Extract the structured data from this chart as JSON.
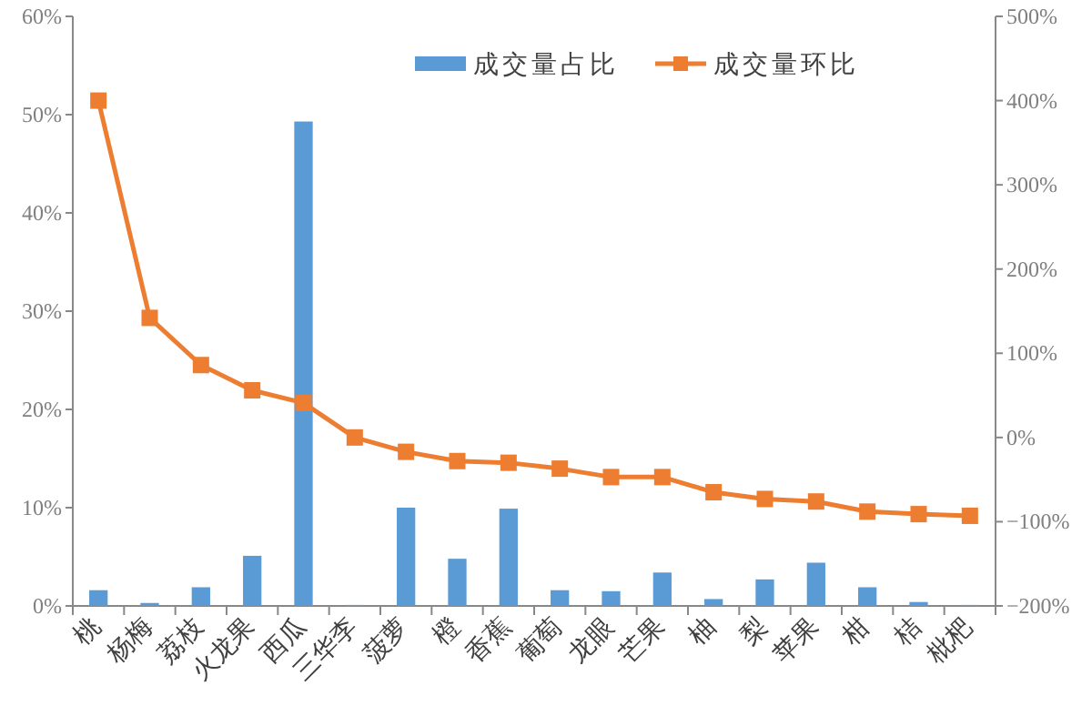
{
  "chart_data": {
    "type": "bar",
    "categories": [
      "桃",
      "杨梅",
      "荔枝",
      "火龙果",
      "西瓜",
      "三华李",
      "菠萝",
      "橙",
      "香蕉",
      "葡萄",
      "龙眼",
      "芒果",
      "柚",
      "梨",
      "苹果",
      "柑",
      "桔",
      "枇杷"
    ],
    "series": [
      {
        "name": "成交量占比",
        "color": "#5b9bd5",
        "values": [
          1.6,
          0.3,
          1.9,
          5.1,
          49.3,
          0.1,
          10.0,
          4.8,
          9.9,
          1.6,
          1.5,
          3.4,
          0.7,
          2.7,
          4.4,
          1.9,
          0.4,
          0.1
        ]
      },
      {
        "name": "成交量环比",
        "type": "line",
        "axis": "y2",
        "color": "#ed7d31",
        "marker": "square",
        "values": [
          400,
          142,
          86,
          56,
          41,
          0,
          -17,
          -28,
          -30,
          -37,
          -47,
          -47,
          -65,
          -73,
          -76,
          -88,
          -91,
          -93
        ]
      }
    ],
    "ylim": [
      0,
      60
    ],
    "yticks": [
      {
        "value": 0,
        "label": "0%"
      },
      {
        "value": 10,
        "label": "10%"
      },
      {
        "value": 20,
        "label": "20%"
      },
      {
        "value": 30,
        "label": "30%"
      },
      {
        "value": 40,
        "label": "40%"
      },
      {
        "value": 50,
        "label": "50%"
      },
      {
        "value": 60,
        "label": "60%"
      }
    ],
    "y2lim": [
      -200,
      500
    ],
    "y2ticks": [
      {
        "value": -200,
        "label": "−200%"
      },
      {
        "value": -100,
        "label": "−100%"
      },
      {
        "value": 0,
        "label": "0%"
      },
      {
        "value": 100,
        "label": "100%"
      },
      {
        "value": 200,
        "label": "200%"
      },
      {
        "value": 300,
        "label": "300%"
      },
      {
        "value": 400,
        "label": "400%"
      },
      {
        "value": 500,
        "label": "500%"
      }
    ],
    "legend": "top",
    "grid": false
  }
}
